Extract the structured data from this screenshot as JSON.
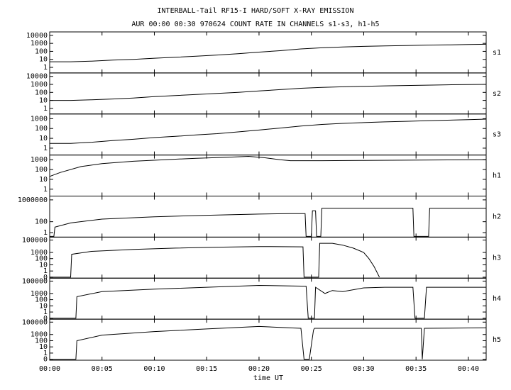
{
  "chart_data": [
    {
      "type": "line",
      "title": "INTERBALL-Tail RF15-I HARD/SOFT X-RAY EMISSION",
      "subtitle": "AUR 00:00 00:30 970624  COUNT RATE IN CHANNELS s1-s3, h1-h5",
      "log": true,
      "xlim": [
        0,
        41.7
      ],
      "ylim": [
        0.2,
        27000
      ],
      "yticks": [
        1,
        10,
        100,
        1000,
        10000
      ],
      "x": [
        0,
        2,
        4,
        6,
        8,
        10,
        12,
        14,
        16,
        18,
        20,
        22,
        24,
        26,
        28,
        30,
        32,
        34,
        36,
        38,
        40,
        41.7
      ],
      "series": [
        {
          "name": "s1",
          "color": "#000000",
          "values": [
            5,
            5,
            6,
            8,
            10,
            14,
            18,
            25,
            35,
            50,
            80,
            120,
            200,
            280,
            350,
            420,
            480,
            540,
            600,
            650,
            720,
            780
          ]
        }
      ]
    },
    {
      "type": "line",
      "log": true,
      "xlim": [
        0,
        41.7
      ],
      "ylim": [
        0.2,
        27000
      ],
      "yticks": [
        1,
        10,
        100,
        1000,
        10000
      ],
      "x": [
        0,
        2,
        4,
        6,
        8,
        10,
        12,
        14,
        16,
        18,
        20,
        22,
        24,
        26,
        28,
        30,
        32,
        34,
        36,
        38,
        40,
        41.7
      ],
      "series": [
        {
          "name": "s2",
          "color": "#000000",
          "values": [
            10,
            10,
            12,
            15,
            20,
            30,
            40,
            55,
            75,
            100,
            150,
            220,
            330,
            420,
            500,
            580,
            650,
            720,
            800,
            880,
            950,
            1000
          ]
        }
      ]
    },
    {
      "type": "line",
      "log": true,
      "xlim": [
        0,
        41.7
      ],
      "ylim": [
        0.2,
        3000
      ],
      "yticks": [
        1,
        10,
        100,
        1000
      ],
      "x": [
        0,
        2,
        4,
        6,
        8,
        10,
        12,
        14,
        16,
        18,
        20,
        22,
        24,
        26,
        28,
        30,
        32,
        34,
        36,
        38,
        40,
        41.7
      ],
      "series": [
        {
          "name": "s3",
          "color": "#000000",
          "values": [
            3,
            3,
            4,
            6,
            8,
            12,
            16,
            22,
            30,
            45,
            70,
            110,
            180,
            260,
            330,
            400,
            470,
            540,
            620,
            700,
            800,
            900
          ]
        }
      ]
    },
    {
      "type": "line",
      "log": true,
      "xlim": [
        0,
        41.7
      ],
      "ylim": [
        0.2,
        3000
      ],
      "yticks": [
        1,
        10,
        100,
        1000
      ],
      "x": [
        0,
        1,
        3,
        5,
        8,
        11,
        14,
        17,
        19,
        20.5,
        22,
        23,
        26,
        30,
        34,
        38,
        41.7
      ],
      "series": [
        {
          "name": "h1",
          "color": "#000000",
          "values": [
            20,
            50,
            200,
            400,
            700,
            1000,
            1400,
            1800,
            2200,
            1600,
            1000,
            800,
            800,
            850,
            900,
            950,
            1000
          ]
        }
      ]
    },
    {
      "type": "line",
      "log": true,
      "xlim": [
        0,
        41.7
      ],
      "ylim": [
        0.15,
        5000000
      ],
      "yticks": [
        1,
        100,
        1000000
      ],
      "x": [
        0,
        0.4,
        0.5,
        2,
        5,
        10,
        15,
        20,
        23,
        24.4,
        24.5,
        25,
        25.1,
        25.4,
        25.5,
        25.9,
        26,
        30,
        34.7,
        34.8,
        36.2,
        36.3,
        41.7
      ],
      "series": [
        {
          "name": "h2",
          "color": "#000000",
          "values": [
            0.2,
            0.2,
            10,
            60,
            300,
            800,
            1500,
            2500,
            3000,
            3000,
            0.2,
            0.2,
            10000,
            10000,
            0.2,
            0.2,
            30000,
            30000,
            30000,
            0.2,
            0.2,
            30000,
            30000
          ]
        }
      ]
    },
    {
      "type": "line",
      "log": true,
      "xlim": [
        0,
        41.7
      ],
      "ylim": [
        0.07,
        300000
      ],
      "yticks": [
        {
          "value": 0.1,
          "label": "0"
        },
        1,
        10,
        100,
        1000,
        100000
      ],
      "x": [
        0,
        2,
        2.1,
        4,
        8,
        12,
        16,
        20,
        24.2,
        24.3,
        25.7,
        25.8,
        27,
        28,
        29,
        30,
        30.5,
        31,
        31.5
      ],
      "series": [
        {
          "name": "h3",
          "color": "#000000",
          "values": [
            0.1,
            0.1,
            500,
            1500,
            3000,
            5000,
            7000,
            9000,
            8000,
            0.1,
            0.1,
            30000,
            30000,
            15000,
            5000,
            1000,
            100,
            5,
            0.1
          ]
        }
      ]
    },
    {
      "type": "line",
      "log": true,
      "xlim": [
        0,
        41.7
      ],
      "ylim": [
        0.07,
        300000
      ],
      "yticks": [
        {
          "value": 0.1,
          "label": "0"
        },
        1,
        10,
        100,
        1000,
        100000
      ],
      "x": [
        0,
        2.5,
        2.6,
        5,
        10,
        15,
        20,
        24.5,
        24.7,
        25.3,
        25.4,
        26.3,
        27,
        28,
        30,
        32,
        34.7,
        34.9,
        35.8,
        36,
        41.7
      ],
      "series": [
        {
          "name": "h4",
          "color": "#000000",
          "values": [
            0.1,
            0.1,
            300,
            2000,
            5000,
            10000,
            20000,
            15000,
            0.1,
            0.1,
            10000,
            1000,
            3000,
            2000,
            8000,
            10000,
            10000,
            0.1,
            0.1,
            10000,
            10000
          ]
        }
      ]
    },
    {
      "type": "line",
      "log": true,
      "xlim": [
        0,
        41.7
      ],
      "ylim": [
        0.07,
        300000
      ],
      "yticks": [
        {
          "value": 0.1,
          "label": "0"
        },
        1,
        10,
        100,
        1000,
        100000
      ],
      "x": [
        0,
        2.5,
        2.6,
        5,
        10,
        15,
        20,
        24,
        24.3,
        24.8,
        25.2,
        25.3,
        30,
        35.5,
        35.6,
        35.8,
        41.7
      ],
      "series": [
        {
          "name": "h5",
          "color": "#000000",
          "values": [
            0.1,
            0.1,
            100,
            800,
            3000,
            8000,
            20000,
            10000,
            0.1,
            0.1,
            5000,
            10000,
            10000,
            10000,
            0.1,
            10000,
            12000
          ]
        }
      ]
    },
    {
      "type": "axis",
      "xlabel": "time UT",
      "xlim": [
        0,
        41.7
      ],
      "xticks": [
        {
          "value": 0,
          "label": "00:00"
        },
        {
          "value": 5,
          "label": "00:05"
        },
        {
          "value": 10,
          "label": "00:10"
        },
        {
          "value": 15,
          "label": "00:15"
        },
        {
          "value": 20,
          "label": "00:20"
        },
        {
          "value": 25,
          "label": "00:25"
        },
        {
          "value": 30,
          "label": "00:30"
        },
        {
          "value": 35,
          "label": "00:35"
        },
        {
          "value": 40,
          "label": "00:40"
        }
      ]
    }
  ]
}
